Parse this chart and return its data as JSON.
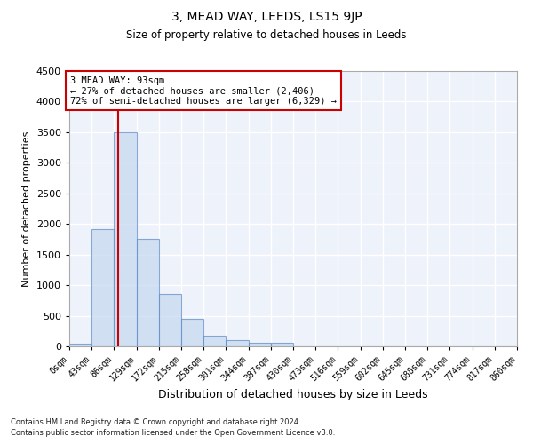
{
  "title": "3, MEAD WAY, LEEDS, LS15 9JP",
  "subtitle": "Size of property relative to detached houses in Leeds",
  "xlabel": "Distribution of detached houses by size in Leeds",
  "ylabel": "Number of detached properties",
  "bin_edges": [
    0,
    43,
    86,
    129,
    172,
    215,
    258,
    301,
    344,
    387,
    430,
    473,
    516,
    559,
    602,
    645,
    688,
    731,
    774,
    817,
    860
  ],
  "bar_heights": [
    45,
    1920,
    3500,
    1760,
    850,
    450,
    175,
    100,
    65,
    55,
    0,
    0,
    0,
    0,
    0,
    0,
    0,
    0,
    0,
    0
  ],
  "bar_color": "#c5d8f0",
  "bar_edge_color": "#5a8ac6",
  "bar_alpha": 0.7,
  "vline_x": 93,
  "vline_color": "#cc0000",
  "ylim": [
    0,
    4500
  ],
  "yticks": [
    0,
    500,
    1000,
    1500,
    2000,
    2500,
    3000,
    3500,
    4000,
    4500
  ],
  "annotation_text": "3 MEAD WAY: 93sqm\n← 27% of detached houses are smaller (2,406)\n72% of semi-detached houses are larger (6,329) →",
  "annotation_box_color": "#cc0000",
  "annotation_text_color": "#000000",
  "background_color": "#eef2fa",
  "grid_color": "#ffffff",
  "footer_line1": "Contains HM Land Registry data © Crown copyright and database right 2024.",
  "footer_line2": "Contains public sector information licensed under the Open Government Licence v3.0.",
  "tick_labels": [
    "0sqm",
    "43sqm",
    "86sqm",
    "129sqm",
    "172sqm",
    "215sqm",
    "258sqm",
    "301sqm",
    "344sqm",
    "387sqm",
    "430sqm",
    "473sqm",
    "516sqm",
    "559sqm",
    "602sqm",
    "645sqm",
    "688sqm",
    "731sqm",
    "774sqm",
    "817sqm",
    "860sqm"
  ]
}
